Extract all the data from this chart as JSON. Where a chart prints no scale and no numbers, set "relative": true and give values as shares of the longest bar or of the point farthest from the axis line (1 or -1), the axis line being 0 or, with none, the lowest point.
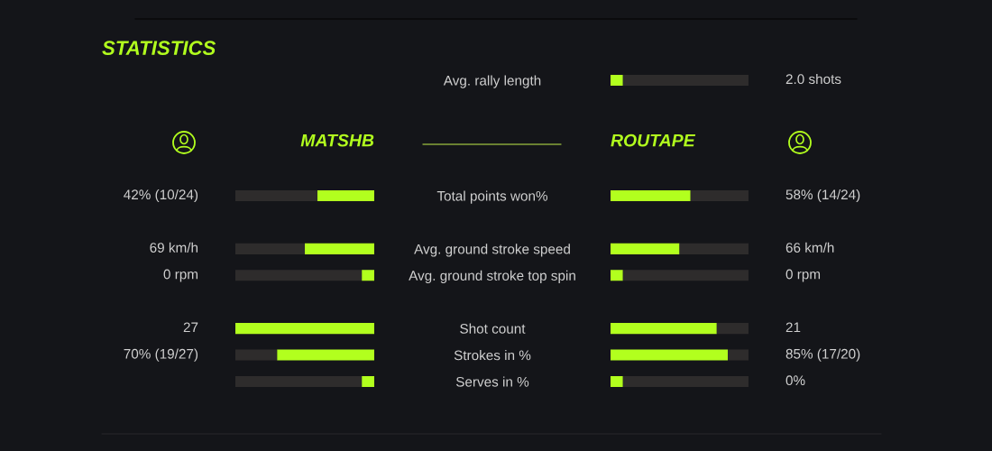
{
  "chart_data": [
    {
      "type": "bar",
      "orientation": "horizontal",
      "stacked": true,
      "relative": true,
      "tick_labels": "y",
      "categories": [
        "Avg. rally length"
      ],
      "series": [
        {
          "color": "#b2ff1e",
          "values": [
            0.09
          ]
        },
        {
          "color": "#2e2c2c",
          "values": [
            0.91
          ]
        }
      ],
      "annotations": [
        "2.0 shots"
      ]
    },
    {
      "type": "bar",
      "orientation": "horizontal",
      "stacked": true,
      "relative": true,
      "title": "STATISTICS",
      "tick_labels": false,
      "categories": [
        "Total points won%",
        null,
        "Avg. ground stroke speed",
        "Avg. ground stroke top spin",
        null,
        "Shot count",
        "Strokes in %",
        "Serves in %"
      ],
      "series": [
        {
          "name": "MATSHB",
          "color": "#b2ff1e",
          "values": [
            0.41,
            null,
            0.5,
            0.09,
            null,
            1,
            0.7,
            0.09
          ]
        },
        {
          "color": "#2e2c2c",
          "values": [
            0.59,
            null,
            0.5,
            0.91,
            null,
            null,
            0.3,
            0.91
          ]
        }
      ],
      "annotations": [
        "42% (10/24)",
        "69 km/h",
        "0 rpm",
        "27",
        "70% (19/27)"
      ]
    },
    {
      "type": "bar",
      "orientation": "horizontal",
      "stacked": true,
      "relative": true,
      "tick_labels": "y",
      "categories": [
        "Total points won%",
        null,
        "Avg. ground stroke speed",
        "Avg. ground stroke top spin",
        null,
        "Shot count",
        "Strokes in %",
        "Serves in %"
      ],
      "series": [
        {
          "name": "ROUTAPE",
          "color": "#b2ff1e",
          "values": [
            0.58,
            null,
            0.5,
            0.09,
            null,
            0.77,
            0.85,
            0.09
          ]
        },
        {
          "color": "#2e2c2c",
          "values": [
            0.42,
            null,
            0.5,
            0.91,
            null,
            0.23,
            0.15,
            0.91
          ]
        }
      ],
      "annotations": [
        "58% (14/24)",
        "66 km/h",
        "0 rpm",
        "21",
        "85% (17/20)",
        "0%"
      ]
    }
  ]
}
